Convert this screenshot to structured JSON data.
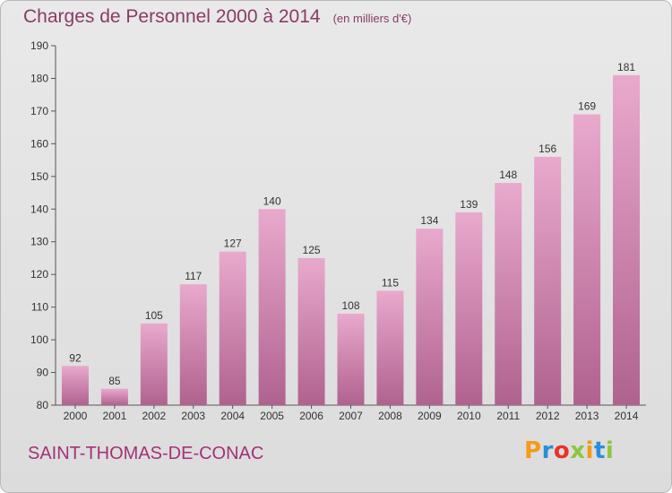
{
  "header": {
    "title": "Charges de Personnel 2000 à 2014",
    "unit": "(en milliers d'€)"
  },
  "footer": {
    "commune": "SAINT-THOMAS-DE-CONAC",
    "logo": {
      "letters": [
        "P",
        "r",
        "o",
        "x",
        "i",
        "t",
        "i"
      ],
      "colors": [
        "#f59a1a",
        "#2a8fd6",
        "#e8332a",
        "#8dc63f",
        "#f59a1a",
        "#2a8fd6",
        "#8dc63f"
      ]
    }
  },
  "colors": {
    "bar_light": "#e9a9cd",
    "bar_dark": "#b0628f",
    "title": "#8a3b66",
    "commune": "#a33277"
  },
  "chart_data": {
    "type": "bar",
    "title": "Charges de Personnel 2000 à 2014",
    "subtitle": "(en milliers d'€)",
    "categories": [
      "2000",
      "2001",
      "2002",
      "2003",
      "2004",
      "2005",
      "2006",
      "2007",
      "2008",
      "2009",
      "2010",
      "2011",
      "2012",
      "2013",
      "2014"
    ],
    "values": [
      92,
      85,
      105,
      117,
      127,
      140,
      125,
      108,
      115,
      134,
      139,
      148,
      156,
      169,
      181
    ],
    "ylim": [
      80,
      190
    ],
    "yticks": [
      80,
      90,
      100,
      110,
      120,
      130,
      140,
      150,
      160,
      170,
      180,
      190
    ],
    "grid": false,
    "data_labels": true
  }
}
